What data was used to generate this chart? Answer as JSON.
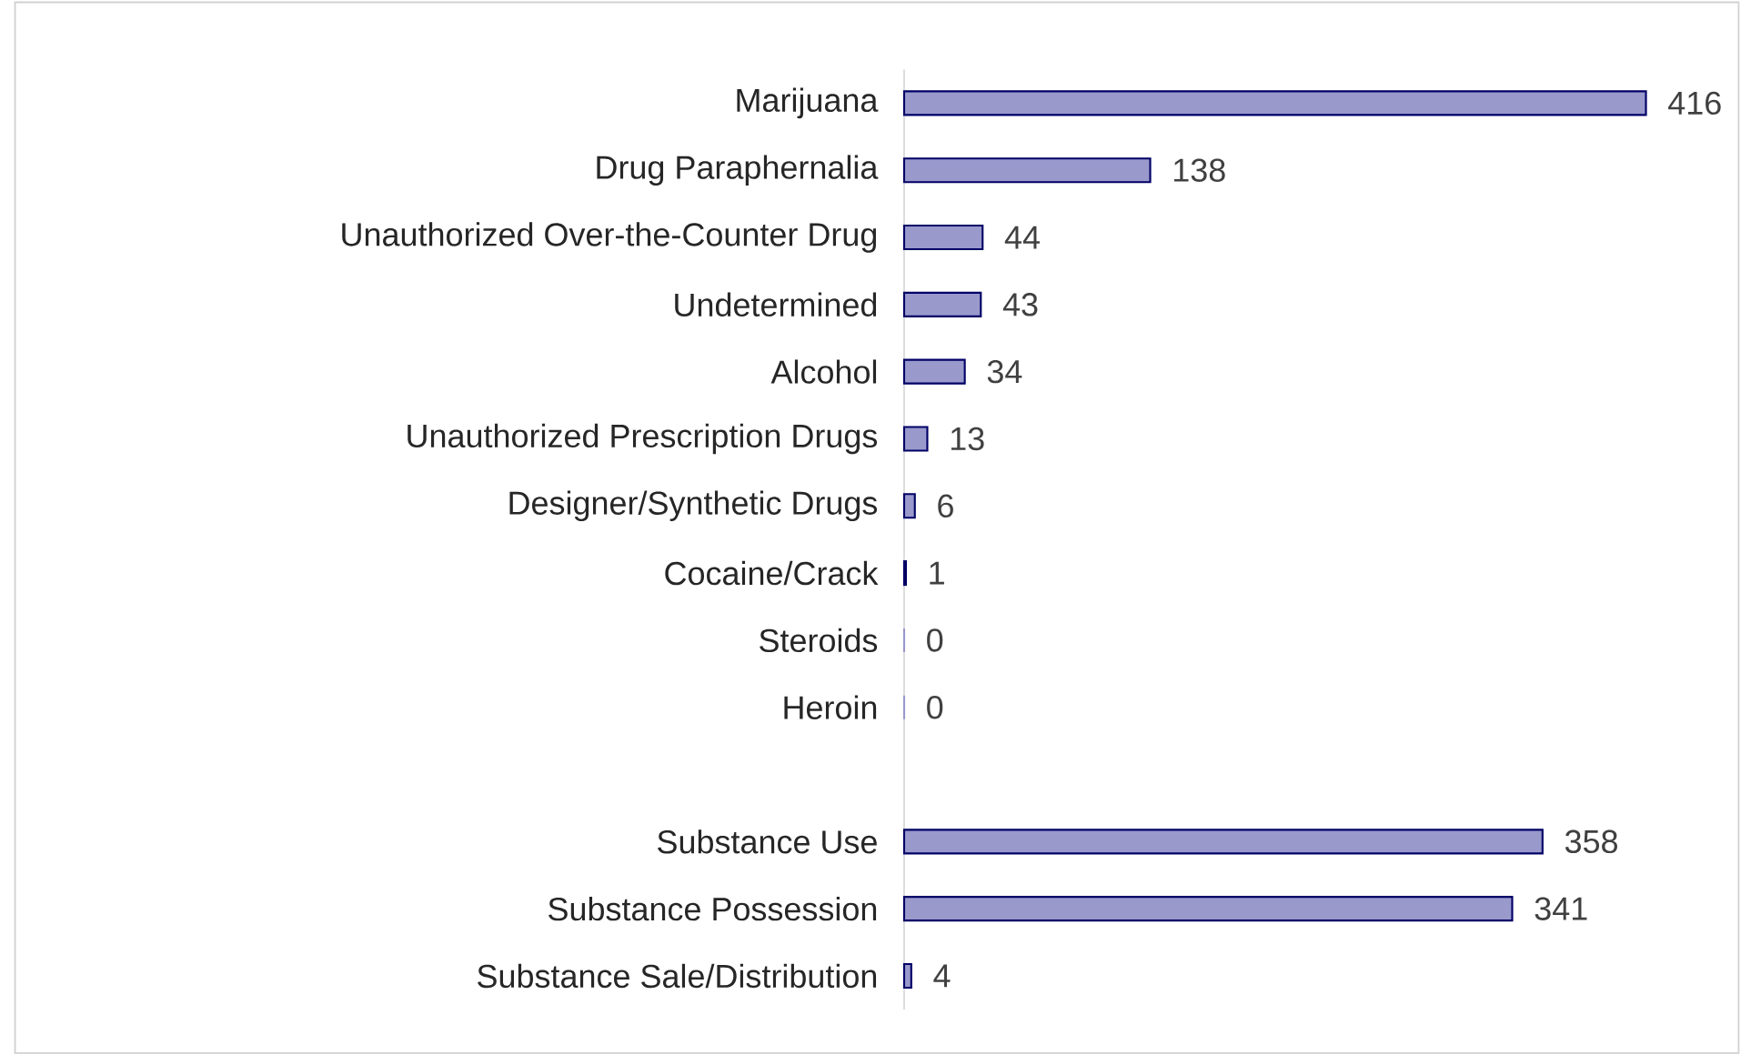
{
  "chart_data": {
    "type": "bar",
    "orientation": "horizontal",
    "categories": [
      "Marijuana",
      "Drug Paraphernalia",
      "Unauthorized Over-the-Counter Drug",
      "Undetermined",
      "Alcohol",
      "Unauthorized Prescription Drugs",
      "Designer/Synthetic Drugs",
      "Cocaine/Crack",
      "Steroids",
      "Heroin",
      null,
      "Substance Use",
      "Substance Possession",
      "Substance Sale/Distribution"
    ],
    "values": [
      416,
      138,
      44,
      43,
      34,
      13,
      6,
      1,
      0,
      0,
      null,
      358,
      341,
      4
    ],
    "color": "#9999cc",
    "data_labels": true
  }
}
